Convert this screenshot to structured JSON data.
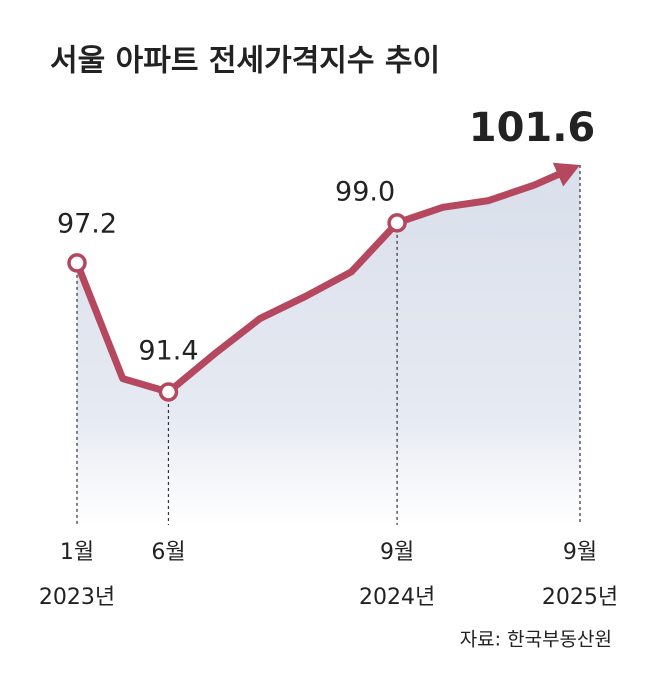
{
  "chart_data": {
    "type": "line",
    "title": "서울 아파트 전세가격지수 추이",
    "source": "자료: 한국부동산원",
    "categories": [
      "1월",
      null,
      "6월",
      null,
      null,
      null,
      null,
      "9월",
      null,
      null,
      null,
      "9월"
    ],
    "years": [
      "2023년",
      null,
      null,
      null,
      null,
      null,
      null,
      "2024년",
      null,
      null,
      null,
      "2025년"
    ],
    "series": [
      {
        "name": "전세가격지수",
        "color": "#b5485e",
        "values": [
          97.2,
          92.0,
          91.4,
          93.1,
          94.7,
          95.7,
          96.8,
          99.0,
          99.7,
          100.0,
          100.7,
          101.6
        ],
        "value_labels": [
          "97.2",
          null,
          "91.4",
          null,
          null,
          null,
          null,
          "99.0",
          null,
          null,
          null,
          "101.6"
        ]
      }
    ]
  }
}
